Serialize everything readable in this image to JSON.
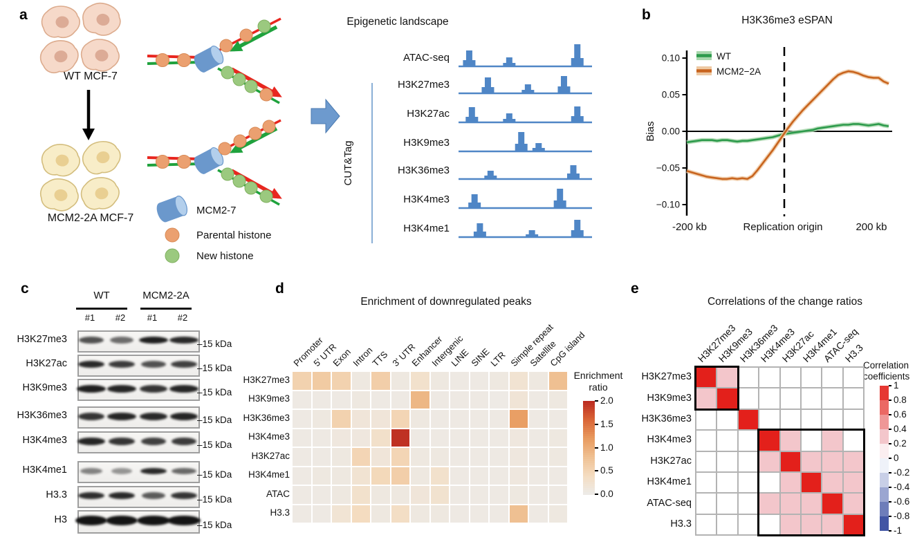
{
  "colors": {
    "wt_green": "#2c9a4b",
    "wt_green_fill": "#a9d7ad",
    "mut_orange": "#c8641e",
    "mut_orange_fill": "#eec9a3",
    "track_blue": "#4f86c6",
    "dna_red": "#e8261f",
    "dna_green": "#1fa23d",
    "histone_parental": "#eba070",
    "histone_new": "#9bc97f",
    "histone_parental_stroke": "#d88a55",
    "histone_new_stroke": "#7fb05e",
    "mcm_blue": "#6b98cc",
    "mcm_cap": "#b3cfec",
    "cell_wt_fill": "#f6d9c9",
    "cell_wt_stroke": "#dcab8d",
    "cell_wt_nucleus": "#dcab96",
    "cell_mut_fill": "#f8edc8",
    "cell_mut_stroke": "#d3bd7d",
    "cell_mut_nucleus": "#e9cf92",
    "arrow_blue": "#6d9ace",
    "heat_grid_e": "#b3b3b3"
  },
  "panel_a": {
    "label": "a",
    "wt_label": "WT MCF-7",
    "mut_label": "MCM2-2A MCF-7",
    "legend": {
      "mcm": "MCM2-7",
      "parental": "Parental histone",
      "new_histone": "New histone"
    },
    "forks": [
      {
        "parent": [
          "parental",
          "parental"
        ],
        "top": [
          "parental",
          "parental",
          "new"
        ],
        "bottom": [
          "new",
          "new",
          "new",
          "parental"
        ]
      },
      {
        "parent": [
          "parental",
          "parental"
        ],
        "top": [
          "parental",
          "parental",
          "parental",
          "parental"
        ],
        "bottom": [
          "new",
          "new",
          "new",
          "new"
        ]
      }
    ],
    "landscape": {
      "title": "Epigenetic landscape",
      "cuttag": "CUT&Tag",
      "tracks": [
        {
          "name": "ATAC-seq",
          "peaks": [
            [
              0.08,
              23
            ],
            [
              0.38,
              13
            ],
            [
              0.89,
              32
            ]
          ]
        },
        {
          "name": "H3K27me3",
          "peaks": [
            [
              0.22,
              23
            ],
            [
              0.52,
              13
            ],
            [
              0.79,
              25
            ]
          ]
        },
        {
          "name": "H3K27ac",
          "peaks": [
            [
              0.1,
              22
            ],
            [
              0.38,
              13
            ],
            [
              0.89,
              23
            ]
          ]
        },
        {
          "name": "H3K9me3",
          "peaks": [
            [
              0.47,
              28
            ],
            [
              0.6,
              12
            ]
          ]
        },
        {
          "name": "H3K36me3",
          "peaks": [
            [
              0.24,
              12
            ],
            [
              0.86,
              20
            ]
          ]
        },
        {
          "name": "H3K4me3",
          "peaks": [
            [
              0.12,
              20
            ],
            [
              0.76,
              28
            ]
          ]
        },
        {
          "name": "H3K4me1",
          "peaks": [
            [
              0.16,
              20
            ],
            [
              0.55,
              10
            ],
            [
              0.89,
              25
            ]
          ]
        }
      ]
    }
  },
  "panel_b": {
    "label": "b",
    "title": "H3K36me3 eSPAN",
    "ylabel": "Bias",
    "yticks": [
      "0.10",
      "0.05",
      "0.00",
      "−0.05",
      "−0.10"
    ],
    "ytick_values": [
      0.1,
      0.05,
      0.0,
      -0.05,
      -0.1
    ],
    "x_left": "-200 kb",
    "x_center": "Replication origin",
    "x_right": "200 kb",
    "legend": [
      "WT",
      "MCM2−2A"
    ]
  },
  "panel_c": {
    "label": "c",
    "groups": [
      {
        "name": "WT",
        "lanes": [
          "#1",
          "#2"
        ]
      },
      {
        "name": "MCM2-2A",
        "lanes": [
          "#1",
          "#2"
        ]
      }
    ],
    "kda": "–15 kDa",
    "rows": [
      {
        "name": "H3K27me3",
        "bands": [
          [
            0.72,
            36
          ],
          [
            0.6,
            34
          ],
          [
            0.95,
            42
          ],
          [
            0.9,
            42
          ]
        ],
        "band_h": 10
      },
      {
        "name": "H3K27ac",
        "bands": [
          [
            0.9,
            38
          ],
          [
            0.82,
            38
          ],
          [
            0.72,
            36
          ],
          [
            0.8,
            38
          ]
        ],
        "band_h": 10
      },
      {
        "name": "H3K9me3",
        "bands": [
          [
            0.95,
            42
          ],
          [
            0.92,
            42
          ],
          [
            0.85,
            40
          ],
          [
            0.92,
            42
          ]
        ],
        "band_h": 11
      },
      {
        "name": "H3K36me3",
        "bands": [
          [
            0.85,
            38
          ],
          [
            0.92,
            42
          ],
          [
            0.9,
            40
          ],
          [
            0.92,
            40
          ]
        ],
        "band_h": 11
      },
      {
        "name": "H3K4me3",
        "bands": [
          [
            0.92,
            40
          ],
          [
            0.85,
            38
          ],
          [
            0.8,
            36
          ],
          [
            0.82,
            36
          ]
        ],
        "band_h": 11
      },
      {
        "name": "H3K4me1",
        "bands": [
          [
            0.5,
            32
          ],
          [
            0.42,
            30
          ],
          [
            0.9,
            38
          ],
          [
            0.62,
            36
          ]
        ],
        "band_h": 9
      },
      {
        "name": "H3.3",
        "bands": [
          [
            0.88,
            38
          ],
          [
            0.9,
            38
          ],
          [
            0.68,
            34
          ],
          [
            0.85,
            38
          ]
        ],
        "band_h": 10
      },
      {
        "name": "H3",
        "bands": [
          [
            1.0,
            46
          ],
          [
            1.0,
            46
          ],
          [
            1.0,
            48
          ],
          [
            1.0,
            48
          ]
        ],
        "band_h": 14
      }
    ]
  },
  "panel_d": {
    "label": "d",
    "title": "Enrichment of downregulated peaks",
    "colorbar_title": [
      "Enrichment",
      "ratio"
    ],
    "colorbar_ticks": [
      "2.0",
      "1.5",
      "1.0",
      "0.5",
      "0.0"
    ]
  },
  "panel_e": {
    "label": "e",
    "title": "Correlations of the change ratios",
    "colorbar_title": [
      "Correlation",
      "coefficients"
    ],
    "colorbar_ticks": [
      "1",
      "0.8",
      "0.6",
      "0.4",
      "0.2",
      "0",
      "-0.2",
      "-0.4",
      "-0.6",
      "-0.8",
      "-1"
    ]
  },
  "chart_data": [
    {
      "type": "line",
      "title": "H3K36me3 eSPAN",
      "ylabel": "Bias",
      "ylim": [
        -0.1,
        0.1
      ],
      "xlim_kb": [
        -200,
        200
      ],
      "x_axis_labels": [
        "-200 kb",
        "Replication origin",
        "200 kb"
      ],
      "vline_at_kb": 0,
      "legend_position": "top-left",
      "x_kb": [
        -200,
        -190,
        -180,
        -170,
        -160,
        -150,
        -140,
        -130,
        -120,
        -110,
        -100,
        -90,
        -80,
        -70,
        -60,
        -50,
        -40,
        -30,
        -20,
        -10,
        0,
        10,
        20,
        30,
        40,
        50,
        60,
        70,
        80,
        90,
        100,
        110,
        120,
        130,
        140,
        150,
        160,
        170,
        180,
        190,
        200
      ],
      "series": [
        {
          "name": "WT",
          "color": "#2c9a4b",
          "band_color": "#a9d7ad",
          "y": [
            -0.015,
            -0.014,
            -0.013,
            -0.012,
            -0.012,
            -0.012,
            -0.013,
            -0.012,
            -0.012,
            -0.013,
            -0.014,
            -0.013,
            -0.013,
            -0.012,
            -0.011,
            -0.01,
            -0.009,
            -0.008,
            -0.006,
            -0.004,
            -0.003,
            -0.002,
            -0.001,
            0.0,
            0.001,
            0.002,
            0.004,
            0.005,
            0.006,
            0.007,
            0.008,
            0.009,
            0.009,
            0.01,
            0.01,
            0.009,
            0.008,
            0.009,
            0.01,
            0.008,
            0.007
          ]
        },
        {
          "name": "MCM2−2A",
          "color": "#c8641e",
          "band_color": "#eec9a3",
          "y": [
            -0.054,
            -0.056,
            -0.058,
            -0.06,
            -0.062,
            -0.063,
            -0.064,
            -0.065,
            -0.065,
            -0.064,
            -0.065,
            -0.064,
            -0.065,
            -0.061,
            -0.053,
            -0.044,
            -0.035,
            -0.026,
            -0.016,
            -0.006,
            0.004,
            0.013,
            0.021,
            0.029,
            0.036,
            0.043,
            0.05,
            0.057,
            0.064,
            0.071,
            0.077,
            0.08,
            0.082,
            0.081,
            0.079,
            0.076,
            0.074,
            0.073,
            0.073,
            0.068,
            0.065
          ]
        }
      ]
    },
    {
      "type": "heatmap",
      "title": "Enrichment of downregulated peaks",
      "columns": [
        "Promoter",
        "5' UTR",
        "Exon",
        "Intron",
        "TTS",
        "3' UTR",
        "Enhancer",
        "Intergenic",
        "LINE",
        "SINE",
        "LTR",
        "Simple repeat",
        "Satellite",
        "CpG island"
      ],
      "rows": [
        "H3K27me3",
        "H3K9me3",
        "H3K36me3",
        "H3K4me3",
        "H3K27ac",
        "H3K4me1",
        "ATAC",
        "H3.3"
      ],
      "scale": {
        "min": 0,
        "max": 2,
        "label": "Enrichment ratio",
        "stops": [
          [
            0,
            "#edebe8"
          ],
          [
            0.4,
            "#f4dcc0"
          ],
          [
            0.8,
            "#efc092"
          ],
          [
            1.2,
            "#e89a5e"
          ],
          [
            1.6,
            "#d96436"
          ],
          [
            2.0,
            "#bb2a20"
          ]
        ]
      },
      "values": [
        [
          0.55,
          0.65,
          0.55,
          0.08,
          0.6,
          0.08,
          0.28,
          0.08,
          0.05,
          0.05,
          0.08,
          0.22,
          0.08,
          0.8
        ],
        [
          0.05,
          0.05,
          0.05,
          0.08,
          0.05,
          0.05,
          0.9,
          0.05,
          0.05,
          0.05,
          0.03,
          0.18,
          0.05,
          0.08
        ],
        [
          0.05,
          0.08,
          0.55,
          0.15,
          0.15,
          0.5,
          0.08,
          0.05,
          0.05,
          0.05,
          0.05,
          1.15,
          0.05,
          0.05
        ],
        [
          0.05,
          0.05,
          0.1,
          0.1,
          0.3,
          1.95,
          0.05,
          0.05,
          0.05,
          0.05,
          0.05,
          0.1,
          0.05,
          0.08
        ],
        [
          0.05,
          0.05,
          0.08,
          0.5,
          0.15,
          0.5,
          0.08,
          0.08,
          0.05,
          0.05,
          0.05,
          0.1,
          0.05,
          0.08
        ],
        [
          0.05,
          0.08,
          0.08,
          0.22,
          0.45,
          0.6,
          0.08,
          0.28,
          0.05,
          0.05,
          0.05,
          0.1,
          0.05,
          0.05
        ],
        [
          0.05,
          0.05,
          0.08,
          0.28,
          0.08,
          0.08,
          0.15,
          0.25,
          0.05,
          0.05,
          0.05,
          0.08,
          0.05,
          0.05
        ],
        [
          0.05,
          0.05,
          0.2,
          0.4,
          0.08,
          0.35,
          0.08,
          0.08,
          0.05,
          0.05,
          0.05,
          0.8,
          0.05,
          0.08
        ]
      ]
    },
    {
      "type": "heatmap",
      "title": "Correlations of the change ratios",
      "labels": [
        "H3K27me3",
        "H3K9me3",
        "H3K36me3",
        "H3K4me3",
        "H3K27ac",
        "H3K4me1",
        "ATAC-seq",
        "H3.3"
      ],
      "scale": {
        "min": -1,
        "max": 1,
        "label": "Correlation coefficients",
        "stops": [
          [
            -1,
            "#2b4099"
          ],
          [
            -0.2,
            "#dfe4f2"
          ],
          [
            0,
            "#ffffff"
          ],
          [
            0.2,
            "#f7dde0"
          ],
          [
            0.3,
            "#f3c6cb"
          ],
          [
            0.65,
            "#ec7470"
          ],
          [
            1,
            "#e3201b"
          ]
        ]
      },
      "boxes": [
        {
          "start": 0,
          "size": 2
        },
        {
          "start": 3,
          "size": 5
        }
      ],
      "values": [
        [
          1,
          0.3,
          0,
          0,
          0,
          0,
          0,
          0
        ],
        [
          0.3,
          1,
          0,
          0,
          0,
          0,
          0,
          0
        ],
        [
          0,
          0,
          1,
          0,
          0,
          0,
          0,
          0
        ],
        [
          0,
          0,
          0,
          1,
          0.3,
          0,
          0.3,
          0
        ],
        [
          0,
          0,
          0,
          0.3,
          1,
          0.3,
          0.3,
          0.3
        ],
        [
          0,
          0,
          0,
          0,
          0.3,
          1,
          0.3,
          0.3
        ],
        [
          0,
          0,
          0,
          0.3,
          0.3,
          0.3,
          1,
          0.3
        ],
        [
          0,
          0,
          0,
          0,
          0.3,
          0.3,
          0.3,
          1
        ]
      ]
    }
  ]
}
